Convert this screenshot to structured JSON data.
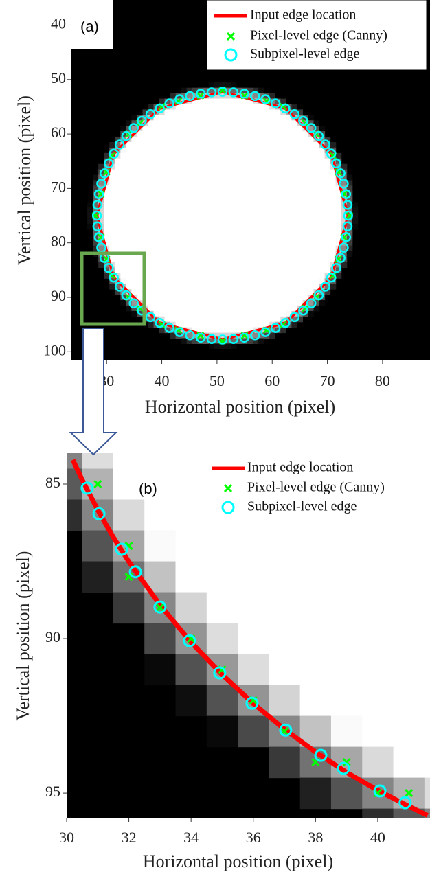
{
  "chart_data": [
    {
      "type": "scatter",
      "panel_label": "(a)",
      "xlabel": "Horizontal position (pixel)",
      "ylabel": "Vertical position (pixel)",
      "xlim": [
        23.5,
        88.6
      ],
      "ylim": [
        35.4,
        101.6
      ],
      "yreverse": true,
      "xticks": [
        30,
        40,
        50,
        60,
        70,
        80
      ],
      "yticks": [
        40,
        50,
        60,
        70,
        80,
        90,
        100
      ],
      "grid": false,
      "legend": "top right",
      "series": [
        {
          "name": "Input edge location",
          "color": "#ff0000",
          "marker": "line",
          "x": [
            73.75,
            70.7,
            62.38,
            51,
            39.63,
            31.3,
            28.25,
            31.3,
            39.63,
            51,
            62.38,
            70.7,
            73.75
          ],
          "values": [
            75,
            86.38,
            94.7,
            97.75,
            94.7,
            86.38,
            75,
            63.62,
            55.3,
            52.25,
            55.3,
            63.62,
            75
          ]
        },
        {
          "name": "Pixel-level edge (Canny)",
          "color": "#00ff00",
          "marker": "x",
          "x": [
            74,
            73,
            72,
            71,
            68,
            66,
            62,
            59,
            55,
            51,
            47,
            43,
            40,
            36,
            34,
            31,
            30,
            29,
            28,
            29,
            30,
            31,
            34,
            36,
            40,
            43,
            47,
            51,
            55,
            59,
            62,
            66,
            68,
            71,
            72,
            73
          ],
          "values": [
            75,
            79,
            83,
            86,
            90,
            92,
            95,
            96,
            97,
            98,
            97,
            96,
            95,
            92,
            90,
            86,
            83,
            79,
            75,
            71,
            67,
            64,
            60,
            58,
            55,
            54,
            53,
            52,
            53,
            54,
            55,
            58,
            60,
            64,
            67,
            71
          ]
        },
        {
          "name": "Subpixel-level edge",
          "color": "#00ffff",
          "marker": "o",
          "x": [
            73.75,
            73.66,
            73.4,
            72.97,
            72.38,
            71.62,
            70.7,
            69.64,
            68.43,
            67.09,
            65.62,
            64.05,
            62.38,
            60.61,
            58.78,
            56.89,
            54.95,
            52.98,
            51,
            49.02,
            47.05,
            45.11,
            43.22,
            41.39,
            39.63,
            37.95,
            36.38,
            34.91,
            33.57,
            32.36,
            31.3,
            30.38,
            29.62,
            29.03,
            28.6,
            28.34,
            28.25,
            28.34,
            28.6,
            29.03,
            29.62,
            30.38,
            31.3,
            32.36,
            33.57,
            34.91,
            36.38,
            37.95,
            39.63,
            41.39,
            43.22,
            45.11,
            47.05,
            49.02,
            51,
            52.98,
            54.95,
            56.89,
            58.78,
            60.61,
            62.38,
            64.05,
            65.62,
            67.09,
            68.43,
            69.64,
            70.7,
            71.62,
            72.38,
            72.97,
            73.4,
            73.66
          ],
          "values": [
            75,
            76.98,
            78.95,
            80.89,
            82.78,
            84.61,
            86.38,
            88.05,
            89.62,
            91.09,
            92.43,
            93.64,
            94.7,
            95.62,
            96.38,
            96.97,
            97.4,
            97.66,
            97.75,
            97.66,
            97.4,
            96.97,
            96.38,
            95.62,
            94.7,
            93.64,
            92.43,
            91.09,
            89.62,
            88.05,
            86.38,
            84.61,
            82.78,
            80.89,
            78.95,
            76.98,
            75,
            73.02,
            71.05,
            69.11,
            67.22,
            65.39,
            63.62,
            61.95,
            60.38,
            58.91,
            57.57,
            56.36,
            55.3,
            54.38,
            53.62,
            53.03,
            52.6,
            52.34,
            52.25,
            52.34,
            52.6,
            53.03,
            53.62,
            54.38,
            55.3,
            56.36,
            57.57,
            58.91,
            60.38,
            61.95,
            63.62,
            65.39,
            67.22,
            69.11,
            71.05,
            73.02
          ]
        }
      ]
    },
    {
      "type": "scatter",
      "panel_label": "(b)",
      "xlabel": "Horizontal position (pixel)",
      "ylabel": "Vertical position (pixel)",
      "xlim": [
        30,
        41.68
      ],
      "ylim": [
        84.0,
        95.82
      ],
      "yreverse": true,
      "xticks": [
        30,
        32,
        34,
        36,
        38,
        40
      ],
      "yticks": [
        85,
        90,
        95
      ],
      "grid": false,
      "legend": "top right",
      "series": [
        {
          "name": "Input edge location",
          "color": "#ff0000",
          "marker": "line",
          "x": [
            30.2,
            30.5,
            31,
            31.5,
            32,
            33,
            34,
            35,
            36,
            37,
            38,
            39,
            40,
            41,
            41.6
          ],
          "values": [
            84.22,
            84.86,
            85.84,
            86.72,
            87.51,
            88.91,
            90.12,
            91.17,
            92.1,
            92.93,
            93.67,
            94.33,
            94.91,
            95.43,
            95.72
          ]
        },
        {
          "name": "Pixel-level edge (Canny)",
          "color": "#00ff00",
          "marker": "x",
          "x": [
            31,
            32,
            32,
            33,
            34,
            35,
            36,
            37,
            38,
            39,
            40,
            41
          ],
          "values": [
            85,
            87,
            88,
            89,
            90,
            91,
            92,
            93,
            94,
            94,
            95,
            95
          ]
        },
        {
          "name": "Subpixel-level edge",
          "color": "#00ffff",
          "marker": "o",
          "x": [
            30.66,
            31.04,
            31.77,
            32.21,
            33.0,
            33.95,
            34.92,
            35.96,
            37.04,
            38.17,
            38.9,
            40.07,
            40.88
          ],
          "values": [
            85.13,
            85.96,
            87.11,
            87.84,
            88.98,
            90.07,
            91.11,
            92.09,
            92.96,
            93.78,
            94.2,
            94.93,
            95.31
          ]
        }
      ]
    }
  ]
}
